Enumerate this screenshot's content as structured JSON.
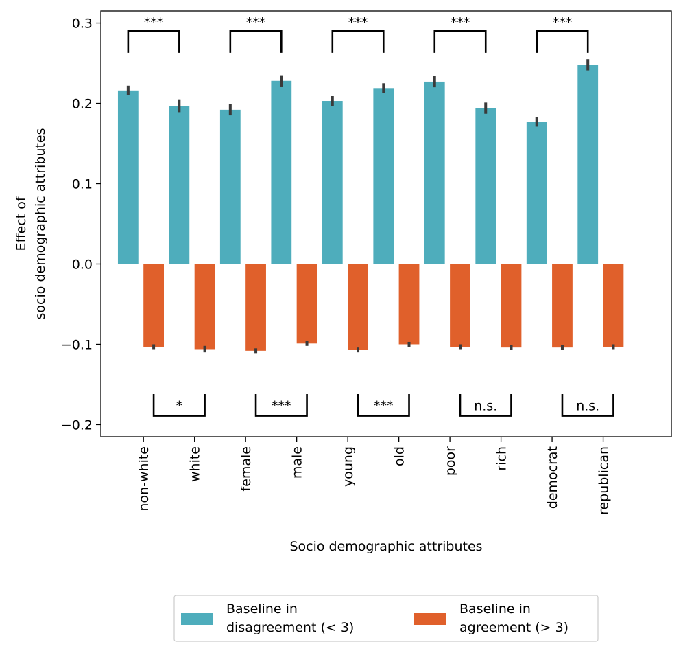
{
  "chart_data": {
    "type": "bar",
    "title": "",
    "xlabel": "Socio demographic attributes",
    "ylabel_lines": [
      "Effect of",
      "socio demographic attributes"
    ],
    "ylim": [
      -0.215,
      0.315
    ],
    "yticks": [
      -0.2,
      -0.1,
      0.0,
      0.1,
      0.2,
      0.3
    ],
    "ytick_labels": [
      "−0.2",
      "−0.1",
      "0.0",
      "0.1",
      "0.2",
      "0.3"
    ],
    "categories": [
      "non-white",
      "white",
      "female",
      "male",
      "young",
      "old",
      "poor",
      "rich",
      "democrat",
      "republican"
    ],
    "series": [
      {
        "name": "Baseline in disagreement (< 3)",
        "legend_lines": [
          "Baseline in",
          "disagreement (< 3)"
        ],
        "color": "#4eadbc",
        "values": [
          0.216,
          0.197,
          0.192,
          0.228,
          0.203,
          0.219,
          0.227,
          0.194,
          0.177,
          0.248
        ],
        "err": [
          0.006,
          0.008,
          0.007,
          0.007,
          0.006,
          0.006,
          0.007,
          0.007,
          0.006,
          0.007
        ]
      },
      {
        "name": "Baseline in agreement (> 3)",
        "legend_lines": [
          "Baseline in",
          "agreement (> 3)"
        ],
        "color": "#e0602b",
        "values": [
          -0.103,
          -0.106,
          -0.108,
          -0.099,
          -0.107,
          -0.1,
          -0.103,
          -0.104,
          -0.104,
          -0.103
        ],
        "err": [
          0.003,
          0.004,
          0.003,
          0.003,
          0.003,
          0.003,
          0.003,
          0.003,
          0.003,
          0.003
        ]
      }
    ],
    "annotations_top": [
      {
        "pair": [
          0,
          1
        ],
        "label": "***",
        "y": 0.29,
        "drop": 0.027
      },
      {
        "pair": [
          2,
          3
        ],
        "label": "***",
        "y": 0.29,
        "drop": 0.027
      },
      {
        "pair": [
          4,
          5
        ],
        "label": "***",
        "y": 0.29,
        "drop": 0.027
      },
      {
        "pair": [
          6,
          7
        ],
        "label": "***",
        "y": 0.29,
        "drop": 0.027
      },
      {
        "pair": [
          8,
          9
        ],
        "label": "***",
        "y": 0.29,
        "drop": 0.027
      }
    ],
    "annotations_bottom": [
      {
        "pair": [
          0,
          1
        ],
        "label": "*",
        "y": -0.189,
        "rise": 0.027
      },
      {
        "pair": [
          2,
          3
        ],
        "label": "***",
        "y": -0.189,
        "rise": 0.027
      },
      {
        "pair": [
          4,
          5
        ],
        "label": "***",
        "y": -0.189,
        "rise": 0.027
      },
      {
        "pair": [
          6,
          7
        ],
        "label": "n.s.",
        "y": -0.189,
        "rise": 0.027
      },
      {
        "pair": [
          8,
          9
        ],
        "label": "n.s.",
        "y": -0.189,
        "rise": 0.027
      }
    ],
    "grid": false,
    "legend_position": "bottom-center"
  }
}
